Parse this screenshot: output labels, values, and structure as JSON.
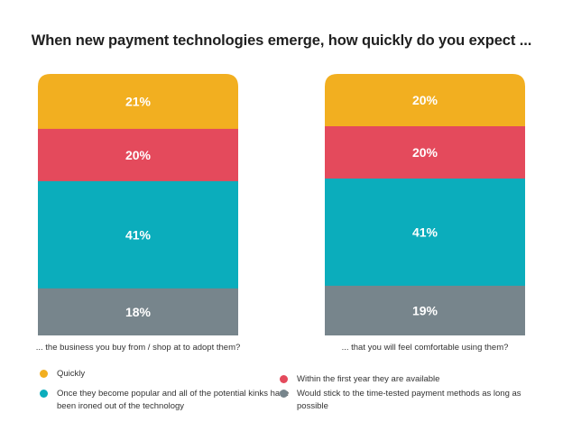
{
  "title": "When new payment technologies emerge, how quickly do you expect ...",
  "chart_data": {
    "type": "stacked-bar",
    "categories": [
      "... the business you buy from / shop at to adopt them?",
      "... that you will feel comfortable using them?"
    ],
    "series": [
      {
        "name": "Quickly",
        "color": "#F2AF20",
        "values": [
          21,
          20
        ],
        "labels": [
          "21%",
          "20%"
        ]
      },
      {
        "name": "Within the first year they are available",
        "color": "#E44A5C",
        "values": [
          20,
          20
        ],
        "labels": [
          "20%",
          "20%"
        ]
      },
      {
        "name": "Once they become popular and all of the potential kinks have been ironed out of the technology",
        "color": "#0BADBC",
        "values": [
          41,
          41
        ],
        "labels": [
          "41%",
          "41%"
        ]
      },
      {
        "name": "Would stick to the time-tested payment methods as long as possible",
        "color": "#77858C",
        "values": [
          18,
          19
        ],
        "labels": [
          "18%",
          "19%"
        ]
      }
    ],
    "stacking": "percent",
    "legend": "bottom",
    "grid": false
  }
}
